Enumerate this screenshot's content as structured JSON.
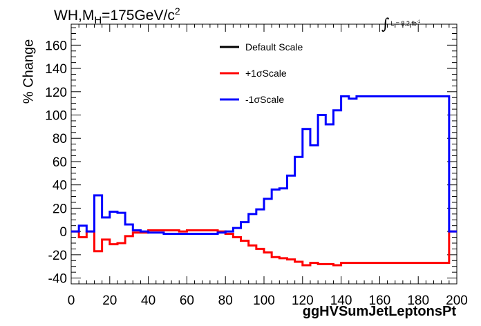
{
  "title": {
    "prefix": "WH,M",
    "sub": "H",
    "value": "=175GeV/c",
    "sup": "2"
  },
  "lumi": {
    "integral": "∫",
    "text": "L = 8.2 fb",
    "sup": "-1"
  },
  "colors": {
    "default": "#000000",
    "plus": "#ff0000",
    "minus": "#0000ff",
    "axis": "#000000",
    "frame": "#000000"
  },
  "chart_data": {
    "type": "line",
    "xlabel": "ggHVSumJetLeptonsPt",
    "ylabel": "% Change",
    "xlim": [
      0,
      200
    ],
    "ylim": [
      -45,
      178
    ],
    "xticks": [
      0,
      20,
      40,
      60,
      80,
      100,
      120,
      140,
      160,
      180,
      200
    ],
    "yticks": [
      -40,
      -20,
      0,
      20,
      40,
      60,
      80,
      100,
      120,
      140,
      160
    ],
    "legend_position": "top-center",
    "series": [
      {
        "name": "Default Scale",
        "color": "#000000",
        "bins": []
      },
      {
        "name": "+1σScale",
        "color": "#ff0000",
        "bins": [
          {
            "x": [
              0,
              4
            ],
            "y": 0
          },
          {
            "x": [
              4,
              8
            ],
            "y": -5
          },
          {
            "x": [
              8,
              12
            ],
            "y": 0
          },
          {
            "x": [
              12,
              16
            ],
            "y": -17
          },
          {
            "x": [
              16,
              20
            ],
            "y": -7
          },
          {
            "x": [
              20,
              24
            ],
            "y": -11
          },
          {
            "x": [
              24,
              28
            ],
            "y": -10
          },
          {
            "x": [
              28,
              32
            ],
            "y": -4
          },
          {
            "x": [
              32,
              36
            ],
            "y": -1
          },
          {
            "x": [
              36,
              40
            ],
            "y": -1
          },
          {
            "x": [
              40,
              44
            ],
            "y": 1
          },
          {
            "x": [
              44,
              48
            ],
            "y": 1
          },
          {
            "x": [
              48,
              52
            ],
            "y": 1
          },
          {
            "x": [
              52,
              56
            ],
            "y": 1
          },
          {
            "x": [
              56,
              60
            ],
            "y": 0
          },
          {
            "x": [
              60,
              64
            ],
            "y": 1
          },
          {
            "x": [
              64,
              68
            ],
            "y": 1
          },
          {
            "x": [
              68,
              72
            ],
            "y": 1
          },
          {
            "x": [
              72,
              76
            ],
            "y": 1
          },
          {
            "x": [
              76,
              80
            ],
            "y": 0
          },
          {
            "x": [
              80,
              84
            ],
            "y": -2
          },
          {
            "x": [
              84,
              88
            ],
            "y": -5
          },
          {
            "x": [
              88,
              92
            ],
            "y": -8
          },
          {
            "x": [
              92,
              96
            ],
            "y": -12
          },
          {
            "x": [
              96,
              100
            ],
            "y": -15
          },
          {
            "x": [
              100,
              104
            ],
            "y": -18
          },
          {
            "x": [
              104,
              108
            ],
            "y": -22
          },
          {
            "x": [
              108,
              112
            ],
            "y": -23
          },
          {
            "x": [
              112,
              116
            ],
            "y": -24
          },
          {
            "x": [
              116,
              120
            ],
            "y": -26
          },
          {
            "x": [
              120,
              124
            ],
            "y": -29
          },
          {
            "x": [
              124,
              128
            ],
            "y": -27
          },
          {
            "x": [
              128,
              132
            ],
            "y": -28
          },
          {
            "x": [
              132,
              136
            ],
            "y": -28
          },
          {
            "x": [
              136,
              140
            ],
            "y": -29
          },
          {
            "x": [
              140,
              144
            ],
            "y": -27
          },
          {
            "x": [
              144,
              148
            ],
            "y": -27
          },
          {
            "x": [
              148,
              196
            ],
            "y": -27
          },
          {
            "x": [
              196,
              200
            ],
            "y": 0
          }
        ]
      },
      {
        "name": "-1σScale",
        "color": "#0000ff",
        "bins": [
          {
            "x": [
              0,
              4
            ],
            "y": 0
          },
          {
            "x": [
              4,
              8
            ],
            "y": 5
          },
          {
            "x": [
              8,
              12
            ],
            "y": 0
          },
          {
            "x": [
              12,
              16
            ],
            "y": 31
          },
          {
            "x": [
              16,
              20
            ],
            "y": 12
          },
          {
            "x": [
              20,
              24
            ],
            "y": 17
          },
          {
            "x": [
              24,
              28
            ],
            "y": 16
          },
          {
            "x": [
              28,
              32
            ],
            "y": 6
          },
          {
            "x": [
              32,
              36
            ],
            "y": 1
          },
          {
            "x": [
              36,
              40
            ],
            "y": 0
          },
          {
            "x": [
              40,
              44
            ],
            "y": -1
          },
          {
            "x": [
              44,
              48
            ],
            "y": -1
          },
          {
            "x": [
              48,
              52
            ],
            "y": -2
          },
          {
            "x": [
              52,
              56
            ],
            "y": -2
          },
          {
            "x": [
              56,
              60
            ],
            "y": -2
          },
          {
            "x": [
              60,
              64
            ],
            "y": -2
          },
          {
            "x": [
              64,
              68
            ],
            "y": -2
          },
          {
            "x": [
              68,
              72
            ],
            "y": -2
          },
          {
            "x": [
              72,
              76
            ],
            "y": -2
          },
          {
            "x": [
              76,
              80
            ],
            "y": -1
          },
          {
            "x": [
              80,
              84
            ],
            "y": 0
          },
          {
            "x": [
              84,
              88
            ],
            "y": 3
          },
          {
            "x": [
              88,
              92
            ],
            "y": 8
          },
          {
            "x": [
              92,
              96
            ],
            "y": 15
          },
          {
            "x": [
              96,
              100
            ],
            "y": 19
          },
          {
            "x": [
              100,
              104
            ],
            "y": 28
          },
          {
            "x": [
              104,
              108
            ],
            "y": 36
          },
          {
            "x": [
              108,
              112
            ],
            "y": 37
          },
          {
            "x": [
              112,
              116
            ],
            "y": 48
          },
          {
            "x": [
              116,
              120
            ],
            "y": 64
          },
          {
            "x": [
              120,
              124
            ],
            "y": 88
          },
          {
            "x": [
              124,
              128
            ],
            "y": 74
          },
          {
            "x": [
              128,
              132
            ],
            "y": 100
          },
          {
            "x": [
              132,
              136
            ],
            "y": 92
          },
          {
            "x": [
              136,
              140
            ],
            "y": 104
          },
          {
            "x": [
              140,
              144
            ],
            "y": 116
          },
          {
            "x": [
              144,
              148
            ],
            "y": 114
          },
          {
            "x": [
              148,
              196
            ],
            "y": 116
          },
          {
            "x": [
              196,
              200
            ],
            "y": 0
          }
        ]
      }
    ]
  }
}
